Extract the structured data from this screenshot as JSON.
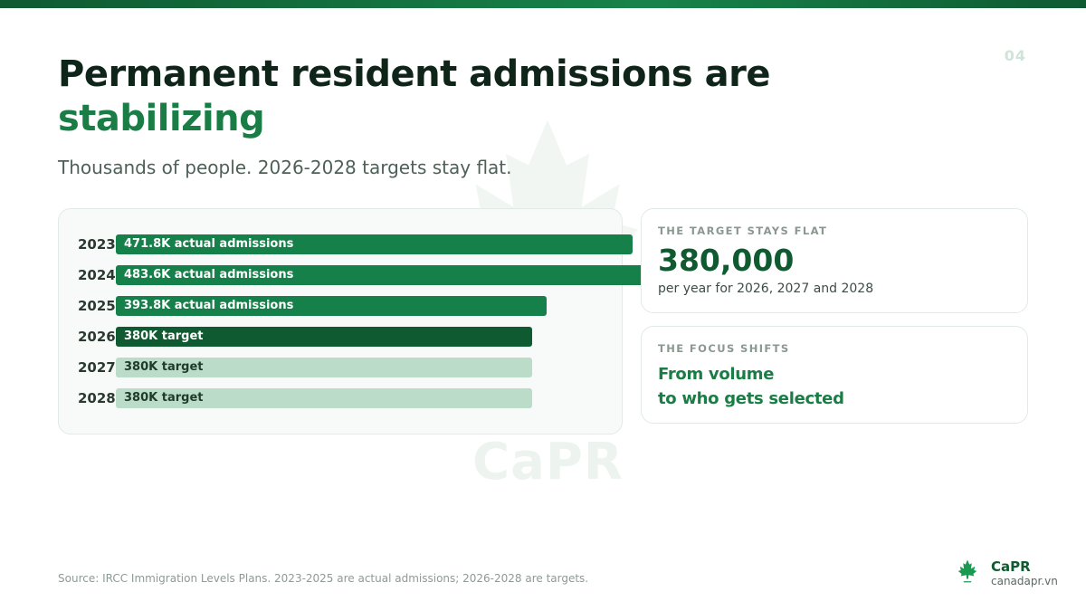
{
  "slide_number": "04",
  "title": {
    "line1": "Permanent resident admissions are",
    "line2": "stabilizing"
  },
  "subtitle": "Thousands of people. 2026-2028 targets stay flat.",
  "chart_data": {
    "type": "bar",
    "orientation": "horizontal",
    "categories": [
      "2023",
      "2024",
      "2025",
      "2026",
      "2027",
      "2028"
    ],
    "values": [
      471.8,
      483.6,
      393.8,
      380,
      380,
      380
    ],
    "labels": [
      "471.8K actual admissions",
      "483.6K actual admissions",
      "393.8K actual admissions",
      "380K target",
      "380K target",
      "380K target"
    ],
    "kinds": [
      "actual",
      "actual",
      "actual",
      "target-current",
      "target",
      "target"
    ],
    "xlim": [
      0,
      500
    ],
    "colors": {
      "actual": "#16804a",
      "target-current": "#0f5a31",
      "target": "#bcdcca",
      "label_dark_bg": "#ffffff",
      "label_light_bg": "#1f3a2b"
    }
  },
  "cards": {
    "target": {
      "kicker": "THE TARGET STAYS FLAT",
      "value": "380,000",
      "note": "per year for 2026, 2027 and 2028"
    },
    "focus": {
      "kicker": "THE FOCUS SHIFTS",
      "line1": "From volume",
      "line2": "to who gets selected"
    }
  },
  "watermark": "CaPR",
  "source": "Source: IRCC Immigration Levels Plans. 2023-2025 are actual admissions; 2026-2028 are targets.",
  "brand": {
    "name": "CaPR",
    "url": "canadapr.vn",
    "icon": "maple-leaf-icon"
  }
}
